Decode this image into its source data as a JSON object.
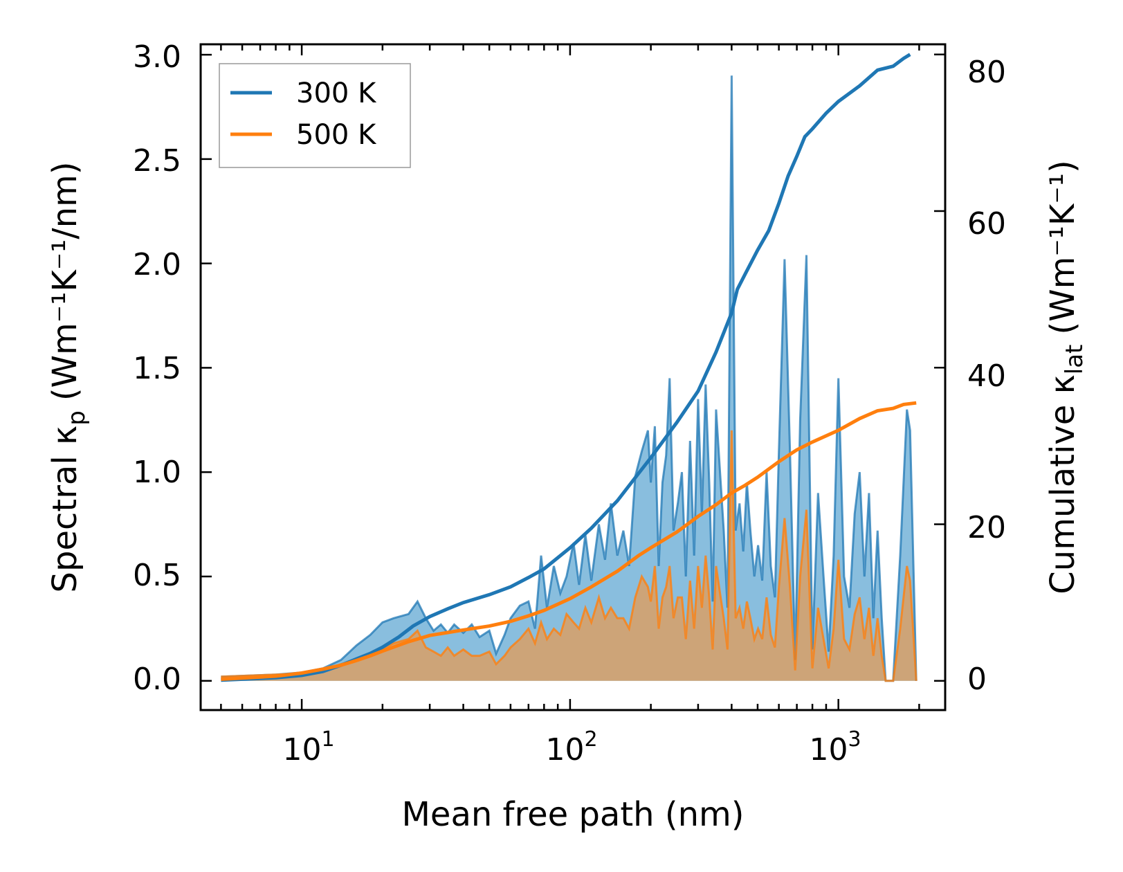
{
  "chart_data": {
    "type": "line",
    "xlabel": "Mean free path (nm)",
    "ylabel_left": "Spectral κ",
    "ylabel_left_sub": "p",
    "ylabel_left_units": "(Wm⁻¹K⁻¹/nm)",
    "ylabel_right": "Cumulative κ",
    "ylabel_right_sub": "lat",
    "ylabel_right_units": "(Wm⁻¹K⁻¹)",
    "x_scale": "log",
    "xlim": [
      4.2,
      2500
    ],
    "ylim_left": [
      -0.14,
      3.05
    ],
    "ylim_right": [
      -3.73,
      81.3
    ],
    "x_ticks": [
      {
        "value": 10,
        "base": "10",
        "exp": "1"
      },
      {
        "value": 100,
        "base": "10",
        "exp": "2"
      },
      {
        "value": 1000,
        "base": "10",
        "exp": "3"
      }
    ],
    "y_ticks_left": [
      "0.0",
      "0.5",
      "1.0",
      "1.5",
      "2.0",
      "2.5",
      "3.0"
    ],
    "y_ticks_right": [
      "0",
      "20",
      "40",
      "60",
      "80"
    ],
    "colors": {
      "s300": "#1f77b4",
      "s500": "#ff7f0e",
      "fill300": "#6baed6",
      "fill500": "#d9a066"
    },
    "legend": {
      "position": "top-left",
      "entries": [
        "300 K",
        "500 K"
      ]
    },
    "series": [
      {
        "name": "300 K",
        "spectral": [
          [
            5,
            0.02
          ],
          [
            8,
            0.03
          ],
          [
            10,
            0.04
          ],
          [
            12,
            0.06
          ],
          [
            14,
            0.1
          ],
          [
            16,
            0.17
          ],
          [
            18,
            0.22
          ],
          [
            20,
            0.28
          ],
          [
            22,
            0.3
          ],
          [
            25,
            0.32
          ],
          [
            27,
            0.38
          ],
          [
            29,
            0.3
          ],
          [
            31,
            0.24
          ],
          [
            33,
            0.27
          ],
          [
            35,
            0.23
          ],
          [
            37,
            0.27
          ],
          [
            40,
            0.23
          ],
          [
            43,
            0.27
          ],
          [
            46,
            0.21
          ],
          [
            50,
            0.24
          ],
          [
            53,
            0.13
          ],
          [
            57,
            0.22
          ],
          [
            60,
            0.3
          ],
          [
            65,
            0.36
          ],
          [
            70,
            0.38
          ],
          [
            74,
            0.25
          ],
          [
            78,
            0.6
          ],
          [
            82,
            0.35
          ],
          [
            87,
            0.55
          ],
          [
            92,
            0.42
          ],
          [
            97,
            0.5
          ],
          [
            103,
            0.66
          ],
          [
            108,
            0.46
          ],
          [
            114,
            0.7
          ],
          [
            120,
            0.48
          ],
          [
            128,
            0.75
          ],
          [
            135,
            0.58
          ],
          [
            142,
            0.85
          ],
          [
            150,
            0.6
          ],
          [
            158,
            0.72
          ],
          [
            166,
            0.55
          ],
          [
            175,
            0.98
          ],
          [
            185,
            1.1
          ],
          [
            195,
            1.2
          ],
          [
            200,
            0.95
          ],
          [
            207,
            1.22
          ],
          [
            214,
            0.55
          ],
          [
            221,
            0.95
          ],
          [
            228,
            1.08
          ],
          [
            235,
            1.45
          ],
          [
            243,
            0.72
          ],
          [
            252,
            0.85
          ],
          [
            261,
            1.0
          ],
          [
            270,
            0.5
          ],
          [
            280,
            1.15
          ],
          [
            290,
            0.6
          ],
          [
            300,
            1.35
          ],
          [
            310,
            0.8
          ],
          [
            320,
            1.42
          ],
          [
            330,
            0.95
          ],
          [
            340,
            0.38
          ],
          [
            350,
            1.3
          ],
          [
            362,
            1.0
          ],
          [
            374,
            0.72
          ],
          [
            386,
            0.35
          ],
          [
            400,
            2.9
          ],
          [
            414,
            0.72
          ],
          [
            428,
            0.85
          ],
          [
            442,
            0.62
          ],
          [
            456,
            0.95
          ],
          [
            470,
            0.72
          ],
          [
            486,
            0.5
          ],
          [
            502,
            0.65
          ],
          [
            520,
            0.48
          ],
          [
            540,
            1.0
          ],
          [
            560,
            0.55
          ],
          [
            580,
            0.4
          ],
          [
            600,
            1.1
          ],
          [
            630,
            2.02
          ],
          [
            660,
            1.1
          ],
          [
            690,
            0.1
          ],
          [
            720,
            1.25
          ],
          [
            760,
            2.04
          ],
          [
            800,
            0.15
          ],
          [
            840,
            0.9
          ],
          [
            880,
            0.5
          ],
          [
            920,
            0.14
          ],
          [
            960,
            0.6
          ],
          [
            1000,
            1.45
          ],
          [
            1050,
            0.5
          ],
          [
            1100,
            0.35
          ],
          [
            1150,
            0.8
          ],
          [
            1200,
            1.0
          ],
          [
            1250,
            0.5
          ],
          [
            1300,
            0.9
          ],
          [
            1350,
            0.3
          ],
          [
            1400,
            0.72
          ],
          [
            1450,
            0.3
          ],
          [
            1500,
            0.0
          ],
          [
            1550,
            0.0
          ],
          [
            1600,
            0.0
          ],
          [
            1700,
            0.6
          ],
          [
            1800,
            1.3
          ],
          [
            1850,
            1.2
          ],
          [
            1950,
            0.0
          ]
        ],
        "cumulative": [
          [
            5,
            0.1
          ],
          [
            8,
            0.4
          ],
          [
            10,
            0.7
          ],
          [
            12,
            1.2
          ],
          [
            14,
            2.0
          ],
          [
            16,
            2.8
          ],
          [
            18,
            3.5
          ],
          [
            20,
            4.3
          ],
          [
            23,
            5.6
          ],
          [
            26,
            7.0
          ],
          [
            30,
            8.2
          ],
          [
            35,
            9.2
          ],
          [
            40,
            10.0
          ],
          [
            50,
            11.0
          ],
          [
            60,
            12.0
          ],
          [
            70,
            13.2
          ],
          [
            80,
            14.3
          ],
          [
            100,
            17.0
          ],
          [
            120,
            19.5
          ],
          [
            150,
            23.0
          ],
          [
            180,
            26.5
          ],
          [
            200,
            28.5
          ],
          [
            250,
            33.0
          ],
          [
            300,
            37.0
          ],
          [
            350,
            42.0
          ],
          [
            400,
            47.0
          ],
          [
            420,
            50.0
          ],
          [
            450,
            52.0
          ],
          [
            500,
            55.0
          ],
          [
            550,
            57.5
          ],
          [
            600,
            61.0
          ],
          [
            650,
            64.5
          ],
          [
            700,
            67.0
          ],
          [
            750,
            69.5
          ],
          [
            800,
            70.5
          ],
          [
            900,
            72.5
          ],
          [
            1000,
            74.0
          ],
          [
            1200,
            76.0
          ],
          [
            1400,
            78.0
          ],
          [
            1600,
            78.5
          ],
          [
            1750,
            79.5
          ],
          [
            1850,
            80.0
          ]
        ]
      },
      {
        "name": "500 K",
        "spectral": [
          [
            5,
            0.02
          ],
          [
            8,
            0.03
          ],
          [
            10,
            0.035
          ],
          [
            12,
            0.05
          ],
          [
            14,
            0.08
          ],
          [
            16,
            0.1
          ],
          [
            18,
            0.12
          ],
          [
            20,
            0.15
          ],
          [
            22,
            0.18
          ],
          [
            25,
            0.2
          ],
          [
            27,
            0.24
          ],
          [
            29,
            0.16
          ],
          [
            31,
            0.14
          ],
          [
            33,
            0.12
          ],
          [
            35,
            0.16
          ],
          [
            37,
            0.12
          ],
          [
            40,
            0.15
          ],
          [
            43,
            0.12
          ],
          [
            46,
            0.12
          ],
          [
            50,
            0.14
          ],
          [
            53,
            0.08
          ],
          [
            57,
            0.12
          ],
          [
            60,
            0.16
          ],
          [
            65,
            0.2
          ],
          [
            70,
            0.25
          ],
          [
            74,
            0.18
          ],
          [
            78,
            0.28
          ],
          [
            82,
            0.2
          ],
          [
            87,
            0.25
          ],
          [
            92,
            0.22
          ],
          [
            97,
            0.32
          ],
          [
            103,
            0.28
          ],
          [
            108,
            0.25
          ],
          [
            114,
            0.35
          ],
          [
            120,
            0.28
          ],
          [
            128,
            0.4
          ],
          [
            135,
            0.3
          ],
          [
            142,
            0.35
          ],
          [
            150,
            0.3
          ],
          [
            158,
            0.3
          ],
          [
            166,
            0.25
          ],
          [
            175,
            0.4
          ],
          [
            185,
            0.5
          ],
          [
            195,
            0.45
          ],
          [
            200,
            0.38
          ],
          [
            207,
            0.55
          ],
          [
            214,
            0.25
          ],
          [
            221,
            0.4
          ],
          [
            228,
            0.45
          ],
          [
            235,
            0.55
          ],
          [
            243,
            0.3
          ],
          [
            252,
            0.4
          ],
          [
            261,
            0.4
          ],
          [
            270,
            0.2
          ],
          [
            280,
            0.48
          ],
          [
            290,
            0.25
          ],
          [
            300,
            0.55
          ],
          [
            310,
            0.35
          ],
          [
            320,
            0.6
          ],
          [
            330,
            0.4
          ],
          [
            340,
            0.15
          ],
          [
            350,
            0.55
          ],
          [
            362,
            0.42
          ],
          [
            374,
            0.3
          ],
          [
            386,
            0.15
          ],
          [
            400,
            1.2
          ],
          [
            414,
            0.3
          ],
          [
            428,
            0.35
          ],
          [
            442,
            0.25
          ],
          [
            456,
            0.38
          ],
          [
            470,
            0.3
          ],
          [
            486,
            0.2
          ],
          [
            502,
            0.25
          ],
          [
            520,
            0.2
          ],
          [
            540,
            0.4
          ],
          [
            560,
            0.22
          ],
          [
            580,
            0.16
          ],
          [
            600,
            0.45
          ],
          [
            630,
            0.78
          ],
          [
            660,
            0.45
          ],
          [
            690,
            0.05
          ],
          [
            720,
            0.5
          ],
          [
            760,
            0.82
          ],
          [
            800,
            0.06
          ],
          [
            840,
            0.35
          ],
          [
            880,
            0.2
          ],
          [
            920,
            0.06
          ],
          [
            960,
            0.25
          ],
          [
            1000,
            0.58
          ],
          [
            1050,
            0.2
          ],
          [
            1100,
            0.15
          ],
          [
            1150,
            0.32
          ],
          [
            1200,
            0.4
          ],
          [
            1250,
            0.2
          ],
          [
            1300,
            0.35
          ],
          [
            1350,
            0.12
          ],
          [
            1400,
            0.3
          ],
          [
            1450,
            0.12
          ],
          [
            1500,
            0.0
          ],
          [
            1550,
            0.0
          ],
          [
            1600,
            0.0
          ],
          [
            1700,
            0.25
          ],
          [
            1800,
            0.55
          ],
          [
            1850,
            0.48
          ],
          [
            1950,
            0.0
          ]
        ],
        "cumulative": [
          [
            5,
            0.2
          ],
          [
            8,
            0.6
          ],
          [
            10,
            1.0
          ],
          [
            12,
            1.5
          ],
          [
            14,
            2.0
          ],
          [
            16,
            2.6
          ],
          [
            18,
            3.2
          ],
          [
            20,
            3.8
          ],
          [
            25,
            5.0
          ],
          [
            30,
            5.8
          ],
          [
            40,
            6.5
          ],
          [
            50,
            7.0
          ],
          [
            60,
            7.6
          ],
          [
            70,
            8.3
          ],
          [
            80,
            9.0
          ],
          [
            100,
            10.5
          ],
          [
            120,
            12.0
          ],
          [
            150,
            14.0
          ],
          [
            180,
            16.0
          ],
          [
            200,
            17.0
          ],
          [
            250,
            19.0
          ],
          [
            300,
            21.0
          ],
          [
            350,
            22.5
          ],
          [
            400,
            24.0
          ],
          [
            450,
            25.0
          ],
          [
            500,
            26.0
          ],
          [
            600,
            28.0
          ],
          [
            700,
            29.5
          ],
          [
            800,
            30.5
          ],
          [
            1000,
            32.0
          ],
          [
            1200,
            33.5
          ],
          [
            1400,
            34.5
          ],
          [
            1600,
            34.8
          ],
          [
            1750,
            35.3
          ],
          [
            1950,
            35.5
          ]
        ]
      }
    ]
  }
}
